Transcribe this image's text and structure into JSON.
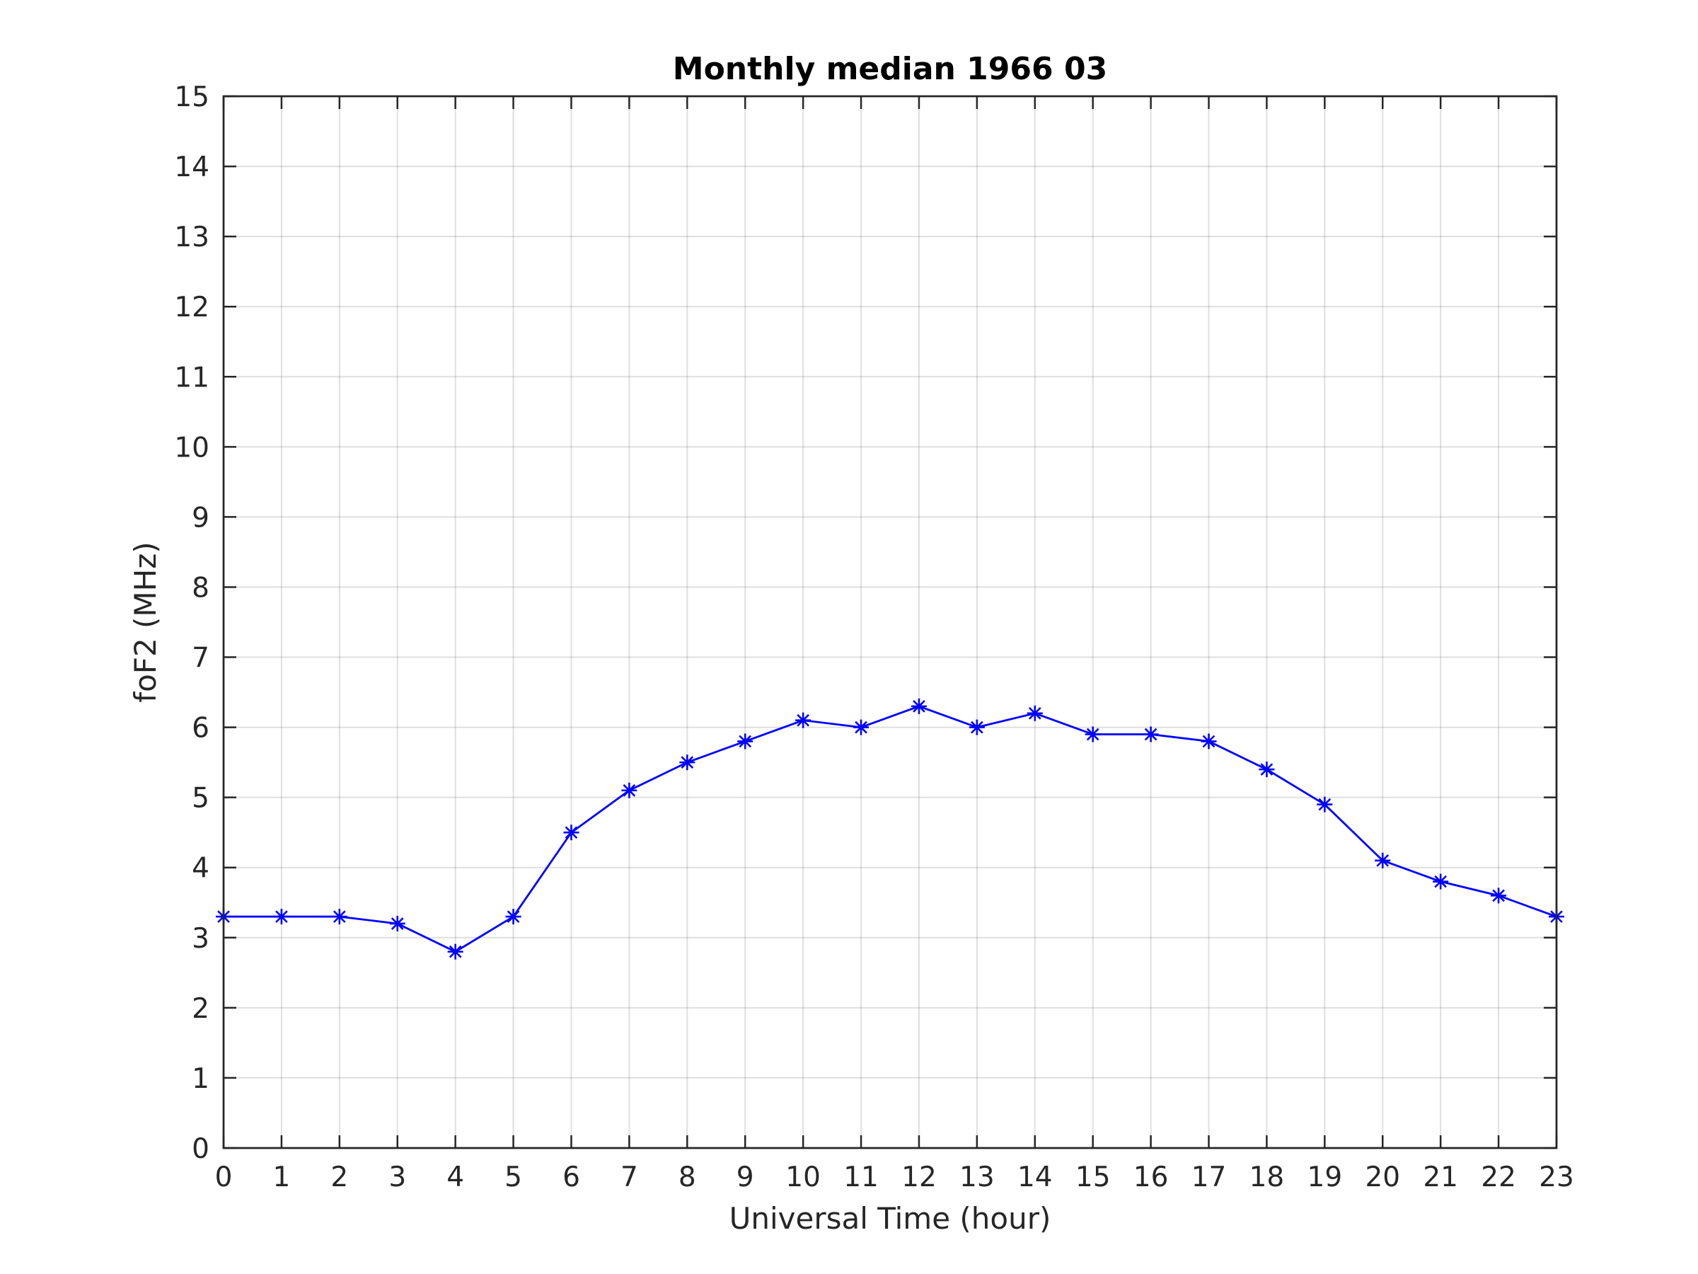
{
  "chart_data": {
    "type": "line",
    "title": "Monthly median 1966 03",
    "xlabel": "Universal Time (hour)",
    "ylabel": "foF2 (MHz)",
    "xlim": [
      0,
      23
    ],
    "ylim": [
      0,
      15
    ],
    "grid": true,
    "x": [
      0,
      1,
      2,
      3,
      4,
      5,
      6,
      7,
      8,
      9,
      10,
      11,
      12,
      13,
      14,
      15,
      16,
      17,
      18,
      19,
      20,
      21,
      22,
      23
    ],
    "xticks": [
      "0",
      "1",
      "2",
      "3",
      "4",
      "5",
      "6",
      "7",
      "8",
      "9",
      "10",
      "11",
      "12",
      "13",
      "14",
      "15",
      "16",
      "17",
      "18",
      "19",
      "20",
      "21",
      "22",
      "23"
    ],
    "yticks": [
      "0",
      "1",
      "2",
      "3",
      "4",
      "5",
      "6",
      "7",
      "8",
      "9",
      "10",
      "11",
      "12",
      "13",
      "14",
      "15"
    ],
    "series": [
      {
        "values": [
          3.3,
          3.3,
          3.3,
          3.2,
          2.8,
          3.3,
          4.5,
          5.1,
          5.5,
          5.8,
          6.1,
          6.0,
          6.3,
          6.0,
          6.2,
          5.9,
          5.9,
          5.8,
          5.4,
          4.9,
          4.1,
          3.8,
          3.6,
          3.3
        ],
        "color": "#0000ff",
        "marker": "asterisk"
      }
    ]
  }
}
